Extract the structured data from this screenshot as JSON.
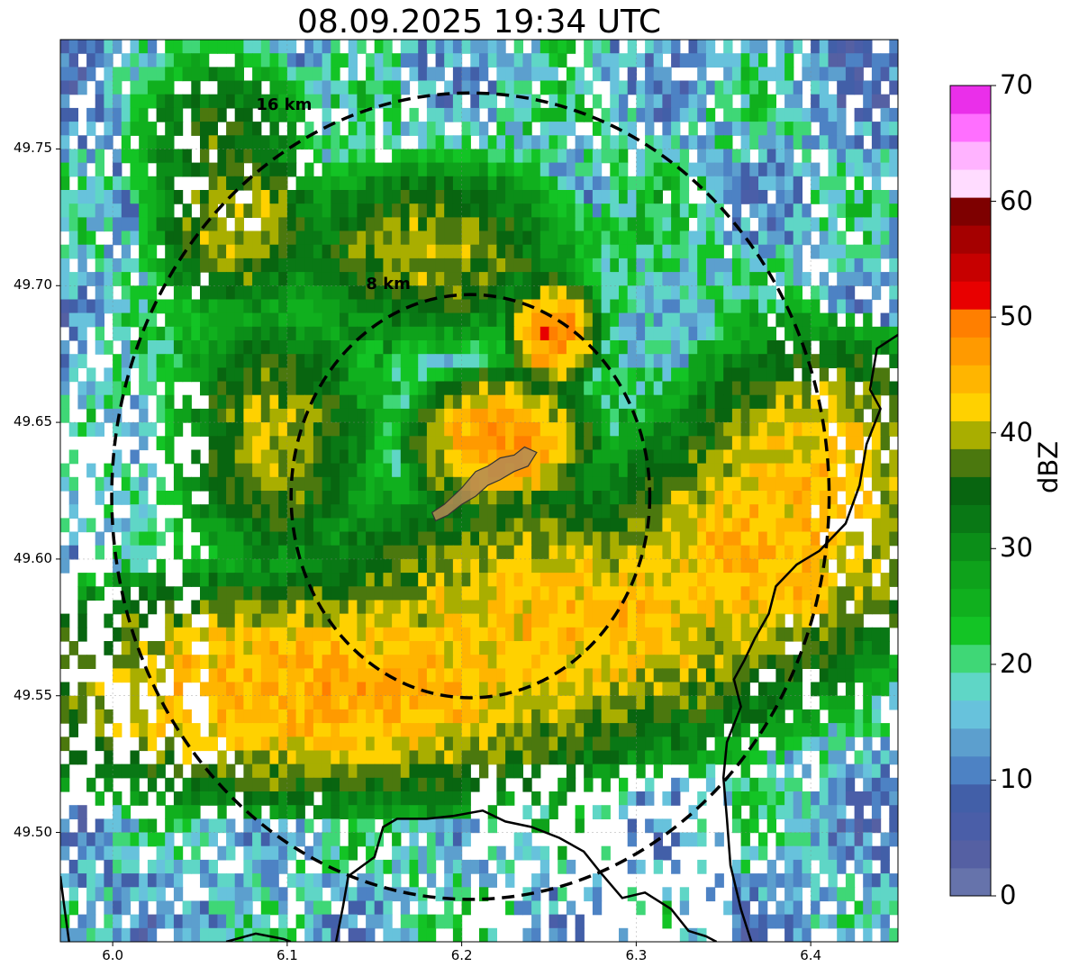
{
  "title": "08.09.2025 19:34 UTC",
  "map": {
    "lon_range": [
      5.97,
      6.45
    ],
    "lat_range": [
      49.46,
      49.79
    ],
    "x_ticks": [
      "6.0",
      "6.1",
      "6.2",
      "6.3",
      "6.4"
    ],
    "x_tick_values": [
      6.0,
      6.1,
      6.2,
      6.3,
      6.4
    ],
    "y_ticks": [
      "49.50",
      "49.55",
      "49.60",
      "49.65",
      "49.70",
      "49.75"
    ],
    "y_tick_values": [
      49.5,
      49.55,
      49.6,
      49.65,
      49.7,
      49.75
    ],
    "grid": true,
    "center": {
      "lon": 6.205,
      "lat": 49.623
    },
    "rings": [
      {
        "label": "8 km",
        "radius_km": 8,
        "style": "dashed"
      },
      {
        "label": "16 km",
        "radius_km": 16,
        "style": "dashed"
      }
    ],
    "highlight_area": {
      "fill": "#b48a55",
      "polygon": [
        [
          6.183,
          49.617
        ],
        [
          6.19,
          49.62
        ],
        [
          6.2,
          49.626
        ],
        [
          6.208,
          49.632
        ],
        [
          6.215,
          49.634
        ],
        [
          6.222,
          49.637
        ],
        [
          6.23,
          49.638
        ],
        [
          6.236,
          49.641
        ],
        [
          6.243,
          49.639
        ],
        [
          6.238,
          49.634
        ],
        [
          6.23,
          49.632
        ],
        [
          6.222,
          49.629
        ],
        [
          6.215,
          49.627
        ],
        [
          6.208,
          49.623
        ],
        [
          6.2,
          49.62
        ],
        [
          6.192,
          49.616
        ],
        [
          6.185,
          49.614
        ]
      ]
    },
    "border_right": [
      [
        6.45,
        49.682
      ],
      [
        6.438,
        49.677
      ],
      [
        6.434,
        49.662
      ],
      [
        6.44,
        49.655
      ],
      [
        6.432,
        49.642
      ],
      [
        6.428,
        49.627
      ],
      [
        6.42,
        49.613
      ],
      [
        6.405,
        49.603
      ],
      [
        6.392,
        49.598
      ],
      [
        6.38,
        49.59
      ],
      [
        6.376,
        49.58
      ],
      [
        6.368,
        49.571
      ],
      [
        6.362,
        49.563
      ],
      [
        6.356,
        49.556
      ],
      [
        6.36,
        49.546
      ],
      [
        6.352,
        49.533
      ],
      [
        6.35,
        49.52
      ],
      [
        6.352,
        49.505
      ],
      [
        6.354,
        49.488
      ],
      [
        6.36,
        49.472
      ],
      [
        6.366,
        49.46
      ]
    ],
    "border_bottom": [
      [
        6.065,
        49.46
      ],
      [
        6.082,
        49.463
      ],
      [
        6.098,
        49.461
      ],
      [
        6.102,
        49.46
      ]
    ],
    "border_bottom2": [
      [
        6.128,
        49.46
      ],
      [
        6.132,
        49.473
      ],
      [
        6.135,
        49.484
      ],
      [
        6.15,
        49.491
      ],
      [
        6.155,
        49.502
      ],
      [
        6.163,
        49.505
      ],
      [
        6.18,
        49.505
      ],
      [
        6.195,
        49.506
      ],
      [
        6.212,
        49.508
      ],
      [
        6.225,
        49.504
      ],
      [
        6.24,
        49.502
      ],
      [
        6.256,
        49.498
      ],
      [
        6.27,
        49.493
      ],
      [
        6.28,
        49.485
      ],
      [
        6.292,
        49.476
      ],
      [
        6.305,
        49.478
      ],
      [
        6.32,
        49.472
      ],
      [
        6.33,
        49.464
      ],
      [
        6.34,
        49.462
      ],
      [
        6.346,
        49.46
      ]
    ],
    "border_left": [
      [
        5.97,
        49.484
      ],
      [
        5.972,
        49.474
      ],
      [
        5.975,
        49.46
      ]
    ],
    "storm_cores": [
      {
        "lon": 6.12,
        "lat": 49.55,
        "rx": 0.12,
        "ry": 0.025,
        "v": 46
      },
      {
        "lon": 6.26,
        "lat": 49.575,
        "rx": 0.1,
        "ry": 0.03,
        "v": 44
      },
      {
        "lon": 6.37,
        "lat": 49.6,
        "rx": 0.06,
        "ry": 0.03,
        "v": 45
      },
      {
        "lon": 6.22,
        "lat": 49.64,
        "rx": 0.03,
        "ry": 0.015,
        "v": 48
      },
      {
        "lon": 6.25,
        "lat": 49.68,
        "rx": 0.015,
        "ry": 0.012,
        "v": 49
      },
      {
        "lon": 6.09,
        "lat": 49.64,
        "rx": 0.035,
        "ry": 0.03,
        "v": 40
      },
      {
        "lon": 6.18,
        "lat": 49.71,
        "rx": 0.05,
        "ry": 0.02,
        "v": 40
      },
      {
        "lon": 6.07,
        "lat": 49.72,
        "rx": 0.03,
        "ry": 0.02,
        "v": 41
      },
      {
        "lon": 6.06,
        "lat": 49.75,
        "rx": 0.03,
        "ry": 0.02,
        "v": 37
      },
      {
        "lon": 6.4,
        "lat": 49.63,
        "rx": 0.05,
        "ry": 0.03,
        "v": 44
      }
    ]
  },
  "colorbar": {
    "label": "dBZ",
    "min": 0,
    "max": 70,
    "tick_labels": [
      "0",
      "10",
      "20",
      "30",
      "40",
      "50",
      "60",
      "70"
    ],
    "tick_values": [
      0,
      10,
      20,
      30,
      40,
      50,
      60,
      70
    ],
    "colors": [
      "#6673ab",
      "#5560a3",
      "#4a5ea8",
      "#425fa8",
      "#4d82c4",
      "#5c9fce",
      "#67c2dc",
      "#5fd6c6",
      "#3fd776",
      "#13c425",
      "#10b01e",
      "#0ea21b",
      "#0b8e18",
      "#097815",
      "#086510",
      "#4b780e",
      "#a9ae00",
      "#ffd100",
      "#ffb500",
      "#ff9a00",
      "#ff7f00",
      "#e80000",
      "#c70000",
      "#a50000",
      "#7e0000",
      "#ffdcff",
      "#ffb3ff",
      "#ff6fff",
      "#ea2fea"
    ]
  }
}
